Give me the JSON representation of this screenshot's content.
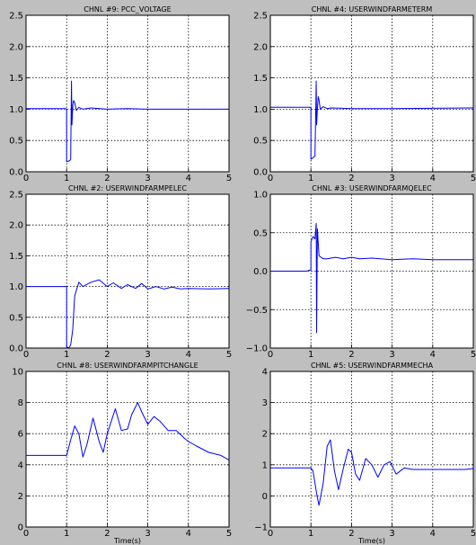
{
  "figure": {
    "background": "#bfbfbf",
    "line_color": "#0000ff"
  },
  "chart_data": [
    {
      "type": "line",
      "title": "CHNL #9: PCC_VOLTAGE",
      "xlabel": "",
      "xlim": [
        0,
        5
      ],
      "ylim": [
        0.0,
        2.5
      ],
      "xticks": [
        "0",
        "1",
        "2",
        "3",
        "4",
        "5"
      ],
      "yticks": [
        "0.0",
        "0.5",
        "1.0",
        "1.5",
        "2.0",
        "2.5"
      ],
      "grid": true,
      "series": [
        {
          "x": [
            0,
            0.97,
            1.0,
            1.0,
            1.08,
            1.1,
            1.12,
            1.13,
            1.15,
            1.17,
            1.2,
            1.24,
            1.3,
            1.4,
            1.6,
            2.0,
            2.5,
            3.0,
            5.0
          ],
          "y": [
            1.01,
            1.01,
            1.0,
            0.16,
            0.18,
            0.2,
            1.45,
            0.75,
            1.05,
            1.14,
            1.1,
            0.98,
            1.03,
            1.0,
            1.02,
            1.0,
            1.01,
            1.0,
            1.0
          ]
        }
      ]
    },
    {
      "type": "line",
      "title": "CHNL #4: USERWINDFARMETERM",
      "xlabel": "",
      "xlim": [
        0,
        5
      ],
      "ylim": [
        0.0,
        2.5
      ],
      "xticks": [
        "0",
        "1",
        "2",
        "3",
        "4",
        "5"
      ],
      "yticks": [
        "0.0",
        "0.5",
        "1.0",
        "1.5",
        "2.0",
        "2.5"
      ],
      "grid": true,
      "series": [
        {
          "x": [
            0,
            0.97,
            1.0,
            1.0,
            1.08,
            1.1,
            1.13,
            1.14,
            1.16,
            1.18,
            1.2,
            1.23,
            1.3,
            1.4,
            1.5,
            2.0,
            3.0,
            5.0
          ],
          "y": [
            1.03,
            1.03,
            1.02,
            0.2,
            0.24,
            0.25,
            1.45,
            0.75,
            1.0,
            1.2,
            1.15,
            1.0,
            1.04,
            1.01,
            1.02,
            1.01,
            1.01,
            1.02
          ]
        }
      ]
    },
    {
      "type": "line",
      "title": "CHNL #2: USERWINDFARMPELEC",
      "xlabel": "",
      "xlim": [
        0,
        5
      ],
      "ylim": [
        0.0,
        2.5
      ],
      "xticks": [
        "0",
        "1",
        "2",
        "3",
        "4",
        "5"
      ],
      "yticks": [
        "0.0",
        "0.5",
        "1.0",
        "1.5",
        "2.0",
        "2.5"
      ],
      "grid": true,
      "series": [
        {
          "x": [
            0,
            0.97,
            1.0,
            1.0,
            1.05,
            1.1,
            1.15,
            1.2,
            1.3,
            1.4,
            1.6,
            1.8,
            2.0,
            2.15,
            2.35,
            2.5,
            2.7,
            2.85,
            3.0,
            3.2,
            3.4,
            3.6,
            3.8,
            4.0,
            4.5,
            5.0
          ],
          "y": [
            1.0,
            1.0,
            1.0,
            0.02,
            0.0,
            0.05,
            0.3,
            0.85,
            1.07,
            1.0,
            1.07,
            1.11,
            1.0,
            1.06,
            0.97,
            1.03,
            0.97,
            1.05,
            0.96,
            1.0,
            0.96,
            0.99,
            0.96,
            0.97,
            0.96,
            0.97
          ]
        }
      ]
    },
    {
      "type": "line",
      "title": "CHNL #3: USERWINDFARMQELEC",
      "xlabel": "",
      "xlim": [
        0,
        5
      ],
      "ylim": [
        -1.0,
        1.0
      ],
      "xticks": [
        "0",
        "1",
        "2",
        "3",
        "4",
        "5"
      ],
      "yticks": [
        "−1.0",
        "−0.5",
        "0.0",
        "0.5",
        "1.0"
      ],
      "grid": true,
      "series": [
        {
          "x": [
            0,
            0.9,
            1.0,
            1.0,
            1.05,
            1.1,
            1.13,
            1.14,
            1.16,
            1.2,
            1.3,
            1.4,
            1.6,
            1.8,
            2.0,
            2.2,
            2.5,
            3.0,
            3.5,
            4.0,
            5.0
          ],
          "y": [
            0.0,
            0.0,
            0.02,
            0.38,
            0.45,
            0.42,
            0.62,
            -0.8,
            0.55,
            0.2,
            0.16,
            0.16,
            0.18,
            0.16,
            0.18,
            0.16,
            0.17,
            0.15,
            0.16,
            0.15,
            0.15
          ]
        }
      ]
    },
    {
      "type": "line",
      "title": "CHNL #8: USERWINDFARMPITCHANGLE",
      "xlabel": "Time(s)",
      "xlim": [
        0,
        5
      ],
      "ylim": [
        0,
        10
      ],
      "xticks": [
        "0",
        "1",
        "2",
        "3",
        "4",
        "5"
      ],
      "yticks": [
        "0",
        "2",
        "4",
        "6",
        "8",
        "10"
      ],
      "grid": true,
      "series": [
        {
          "x": [
            0,
            1.0,
            1.1,
            1.2,
            1.3,
            1.4,
            1.5,
            1.65,
            1.8,
            1.9,
            2.0,
            2.2,
            2.35,
            2.5,
            2.6,
            2.75,
            2.85,
            3.0,
            3.15,
            3.3,
            3.5,
            3.7,
            3.9,
            4.0,
            4.2,
            4.5,
            4.8,
            5.0
          ],
          "y": [
            4.6,
            4.6,
            5.6,
            6.5,
            6.0,
            4.5,
            5.3,
            7.0,
            5.5,
            4.8,
            6.0,
            7.6,
            6.2,
            6.3,
            7.2,
            8.0,
            7.4,
            6.6,
            7.1,
            6.8,
            6.2,
            6.2,
            5.7,
            5.5,
            5.2,
            4.8,
            4.6,
            4.3
          ]
        }
      ]
    },
    {
      "type": "line",
      "title": "CHNL #5: USERWINDFARMMECHA",
      "xlabel": "Time(s)",
      "xlim": [
        0,
        5
      ],
      "ylim": [
        -1,
        4
      ],
      "xticks": [
        "0",
        "1",
        "2",
        "3",
        "4",
        "5"
      ],
      "yticks": [
        "−1",
        "0",
        "1",
        "2",
        "3",
        "4"
      ],
      "grid": true,
      "series": [
        {
          "x": [
            0,
            1.0,
            1.05,
            1.15,
            1.2,
            1.3,
            1.4,
            1.48,
            1.58,
            1.68,
            1.8,
            1.92,
            2.0,
            2.1,
            2.2,
            2.35,
            2.5,
            2.65,
            2.8,
            2.95,
            3.1,
            3.3,
            3.5,
            3.7,
            3.9,
            4.2,
            4.5,
            4.8,
            5.0
          ],
          "y": [
            0.9,
            0.9,
            0.8,
            0.0,
            -0.3,
            0.4,
            1.6,
            1.8,
            0.8,
            0.2,
            0.9,
            1.5,
            1.4,
            0.7,
            0.5,
            1.2,
            1.0,
            0.6,
            1.0,
            1.1,
            0.7,
            0.9,
            0.85,
            0.85,
            0.85,
            0.85,
            0.85,
            0.85,
            0.88
          ]
        }
      ]
    }
  ]
}
